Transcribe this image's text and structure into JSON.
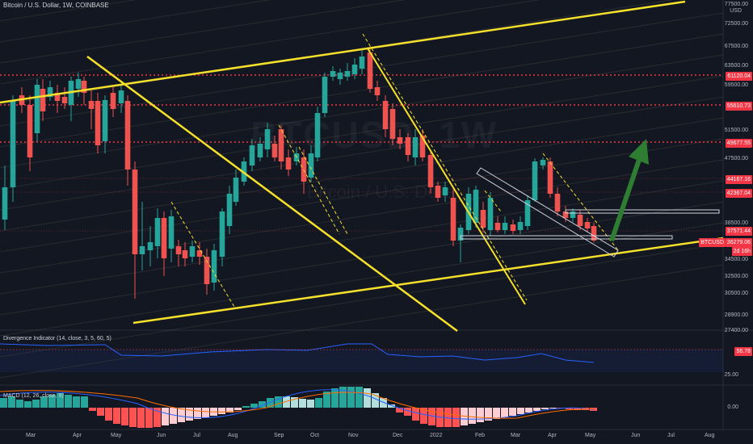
{
  "header": {
    "title": "Bitcoin / U.S. Dollar, 1W, COINBASE"
  },
  "watermark": {
    "symbol": "BTCUSD, 1W",
    "name": "Bitcoin / U.S. Dollar"
  },
  "price_axis": {
    "currency": "USD",
    "ticks": [
      "77500.00",
      "72500.00",
      "67500.00",
      "63500.00",
      "59500.00",
      "51500.00",
      "47500.00",
      "38500.00",
      "34500.00",
      "32500.00",
      "30500.00",
      "28900.00",
      "27400.00"
    ],
    "levels": [
      {
        "label": "61120.04",
        "color": "#f23645"
      },
      {
        "label": "55610.73",
        "color": "#f23645"
      },
      {
        "label": "49677.55",
        "color": "#f23645"
      },
      {
        "label": "44167.16",
        "color": "#f23645"
      },
      {
        "label": "42367.04",
        "color": "#f23645"
      },
      {
        "label": "37571.44",
        "color": "#f23645"
      },
      {
        "label": "36279.06",
        "color": "#f23645"
      },
      {
        "label": "BTCUSD",
        "color": "#f23645"
      },
      {
        "label": "2d 16h",
        "color": "#f23645"
      }
    ]
  },
  "divergence": {
    "label": "Divergence Indicator (14, close, 3, 5, 60, 5)",
    "value": "56.78",
    "tick": "25.00",
    "value_color": "#f23645"
  },
  "macd": {
    "label": "MACD (12, 26, close, 9)",
    "tick": "0.00"
  },
  "time_axis": {
    "labels": [
      "Mar",
      "Apr",
      "May",
      "Jun",
      "Jul",
      "Aug",
      "Sep",
      "Oct",
      "Nov",
      "Dec",
      "2022",
      "Feb",
      "Mar",
      "Apr",
      "May",
      "Jun",
      "Jul",
      "Aug"
    ]
  },
  "colors": {
    "up": "#26a69a",
    "down": "#ef5350",
    "drawing": "#f5e02b",
    "arrow": "#2e7d32",
    "background": "#131722"
  }
}
